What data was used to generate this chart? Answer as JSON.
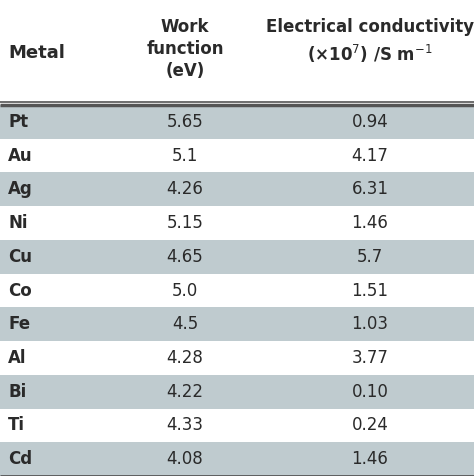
{
  "metals": [
    "Pt",
    "Au",
    "Ag",
    "Ni",
    "Cu",
    "Co",
    "Fe",
    "Al",
    "Bi",
    "Ti",
    "Cd"
  ],
  "work_function": [
    "5.65",
    "5.1",
    "4.26",
    "5.15",
    "4.65",
    "5.0",
    "4.5",
    "4.28",
    "4.22",
    "4.33",
    "4.08"
  ],
  "conductivity": [
    "0.94",
    "4.17",
    "6.31",
    "1.46",
    "5.7",
    "1.51",
    "1.03",
    "3.77",
    "0.10",
    "0.24",
    "1.46"
  ],
  "metal_col_header": "Metal",
  "wf_header": [
    "Work",
    "function",
    "(eV)"
  ],
  "ec_header_line1": "Electrical conductivity",
  "ec_header_line2": "(×10$^{7}$) /S m$^{-1}$",
  "shaded_color": "#bfcbcf",
  "white_color": "#ffffff",
  "bg_color": "#ffffff",
  "line_color": "#555555",
  "font_color": "#2a2a2a",
  "figw": 4.74,
  "figh": 4.76,
  "dpi": 100
}
